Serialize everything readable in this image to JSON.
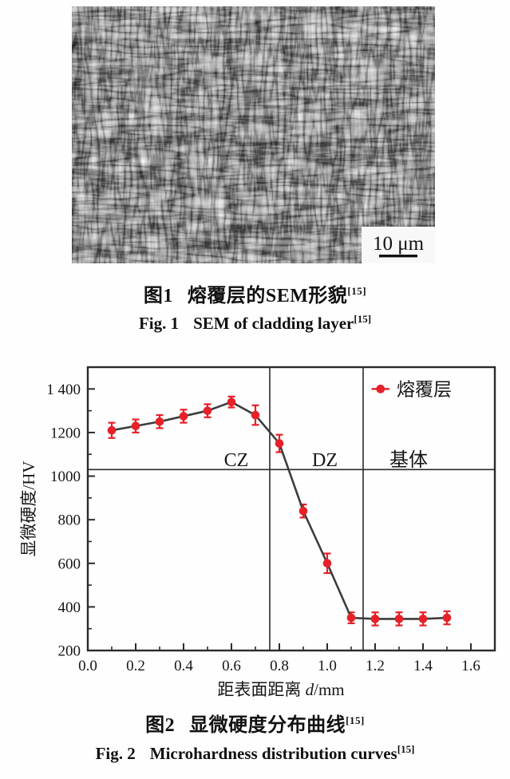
{
  "figure1": {
    "caption_zh": {
      "label": "图1",
      "text": "熔覆层的SEM形貌",
      "ref": "[15]"
    },
    "caption_en": {
      "label": "Fig. 1",
      "text": "SEM of cladding layer",
      "ref": "[15]"
    },
    "scale_bar": "10 μm"
  },
  "figure2": {
    "caption_zh": {
      "label": "图2",
      "text": "显微硬度分布曲线",
      "ref": "[15]"
    },
    "caption_en": {
      "label": "Fig. 2",
      "text": "Microhardness distribution curves",
      "ref": "[15]"
    }
  },
  "chart_data": {
    "type": "line",
    "x": [
      0.1,
      0.2,
      0.3,
      0.4,
      0.5,
      0.6,
      0.7,
      0.8,
      0.9,
      1.0,
      1.1,
      1.2,
      1.3,
      1.4,
      1.5
    ],
    "series": [
      {
        "name": "熔覆层",
        "values": [
          1210,
          1230,
          1250,
          1275,
          1300,
          1340,
          1280,
          1150,
          840,
          600,
          350,
          345,
          345,
          345,
          350
        ],
        "errors": [
          35,
          30,
          30,
          30,
          30,
          25,
          45,
          40,
          30,
          45,
          25,
          30,
          30,
          30,
          30
        ]
      }
    ],
    "xlabel_parts": [
      "距表面距离 ",
      "d",
      "/mm"
    ],
    "ylabel": "显微硬度/HV",
    "xlim": [
      0,
      1.7
    ],
    "ylim": [
      200,
      1500
    ],
    "xticks": {
      "major": [
        0,
        0.2,
        0.4,
        0.6,
        0.8,
        1.0,
        1.2,
        1.4,
        1.6
      ],
      "minor": [
        0.1,
        0.3,
        0.5,
        0.7,
        0.9,
        1.1,
        1.3,
        1.5,
        1.7
      ],
      "labels": [
        "0.0",
        "0.2",
        "0.4",
        "0.6",
        "0.8",
        "1.0",
        "1.2",
        "1.4",
        "1.6"
      ]
    },
    "yticks": {
      "major": [
        200,
        400,
        600,
        800,
        1000,
        1200,
        1400
      ],
      "minor": [
        300,
        500,
        700,
        900,
        1100,
        1300
      ],
      "labels": [
        "200",
        "400",
        "600",
        "800",
        "1000",
        "1200",
        "1 400"
      ]
    },
    "zone_lines": {
      "vertical": [
        0.76,
        1.15
      ],
      "horizontal": 1030
    },
    "zone_labels": [
      {
        "text": "CZ",
        "d": 0.62,
        "hv": 1075
      },
      {
        "text": "DZ",
        "d": 0.99,
        "hv": 1075
      },
      {
        "text": "基体",
        "d": 1.34,
        "hv": 1075
      }
    ],
    "legend": {
      "label": "熔覆层",
      "position": "top-right"
    },
    "colors": {
      "marker": "#e62129",
      "error": "#e62129",
      "line": "#3d3d3d",
      "axis": "#2b2b2b"
    },
    "grid": false
  }
}
